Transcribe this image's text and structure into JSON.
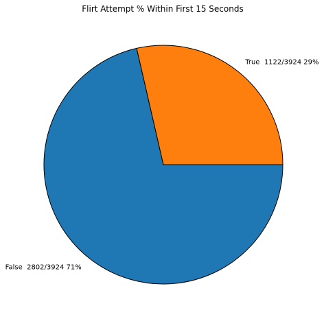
{
  "chart_data": {
    "type": "pie",
    "title": "Flirt Attempt % Within First 15 Seconds",
    "slices": [
      {
        "label": "False  2802/3924 71%",
        "category": "False",
        "count": 2802,
        "total": 3924,
        "percent": 71,
        "color": "#1f77b4"
      },
      {
        "label": "True  1122/3924 29%",
        "category": "True",
        "count": 1122,
        "total": 3924,
        "percent": 29,
        "color": "#ff7f0e"
      }
    ],
    "start_angle_deg": 0,
    "direction": "clockwise",
    "edge_color": "#000000",
    "legend": "none"
  }
}
